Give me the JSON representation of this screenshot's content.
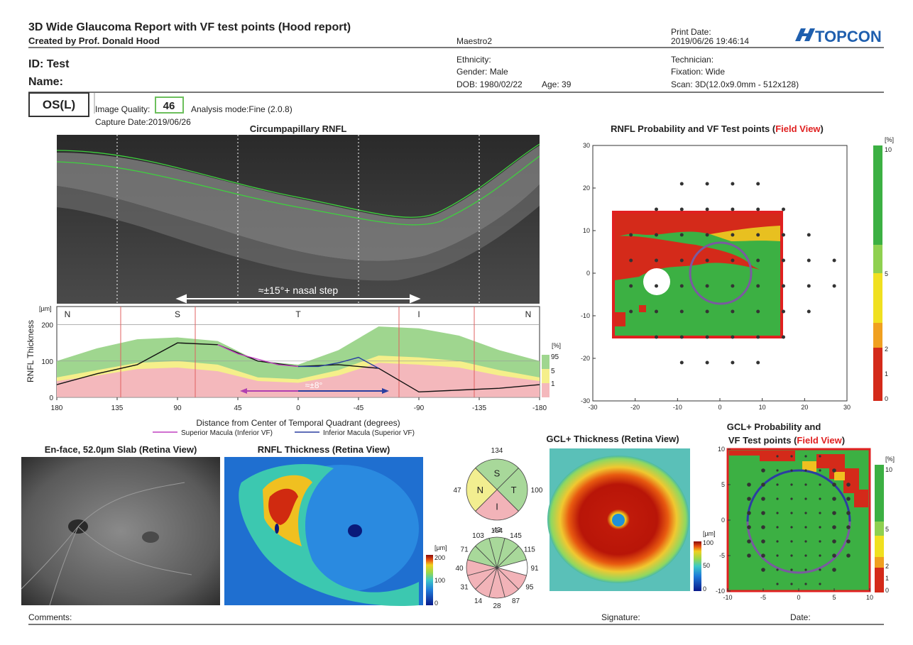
{
  "header": {
    "title": "3D Wide Glaucoma Report with VF test points (Hood report)",
    "subtitle": "Created by Prof. Donald Hood",
    "device": "Maestro2",
    "print_date_label": "Print Date:",
    "print_date": "2019/06/26 19:46:14",
    "logo": "TOPCON"
  },
  "patient": {
    "id": "ID: Test",
    "name": "Name:",
    "ethnicity": "Ethnicity:",
    "gender": "Gender: Male",
    "dob": "DOB: 1980/02/22",
    "age": "Age: 39",
    "technician": "Technician:",
    "fixation": "Fixation: Wide",
    "scan": "Scan: 3D(12.0x9.0mm - 512x128)",
    "eye": "OS(L)",
    "image_quality_label": "Image Quality:",
    "image_quality": 46,
    "analysis_mode": "Analysis mode:Fine (2.0.8)",
    "capture_date": "Capture Date:2019/06/26"
  },
  "cprnfl": {
    "title": "Circumpapillary RNFL",
    "annotation": "≈±15°+ nasal step",
    "annotation_small": "≈±8°",
    "sectors": [
      "N",
      "S",
      "T",
      "I",
      "N"
    ],
    "y_unit": "[µm]",
    "y_label": "RNFL Thickness",
    "x_label": "Distance from Center of Temporal Quadrant (degrees)",
    "xlim": [
      180,
      -180
    ],
    "ylim": [
      0,
      250
    ],
    "xticks": [
      180,
      135,
      90,
      45,
      0,
      -45,
      -90,
      -135,
      -180
    ],
    "yticks": [
      0,
      100,
      200
    ],
    "legend_unit": "[%]",
    "legend_labels": [
      95,
      5,
      1
    ],
    "x": [
      180,
      150,
      120,
      90,
      60,
      30,
      0,
      -30,
      -60,
      -90,
      -120,
      -150,
      -180
    ],
    "p95": [
      100,
      135,
      160,
      165,
      155,
      100,
      90,
      130,
      195,
      190,
      170,
      130,
      100
    ],
    "p5": [
      55,
      75,
      95,
      100,
      90,
      55,
      50,
      75,
      115,
      110,
      100,
      75,
      55
    ],
    "p1": [
      45,
      60,
      78,
      82,
      72,
      45,
      40,
      60,
      95,
      90,
      82,
      60,
      45
    ],
    "measured": [
      35,
      65,
      90,
      150,
      145,
      100,
      85,
      90,
      80,
      15,
      20,
      25,
      35
    ],
    "superior_macula": {
      "name": "Superior Macula (Inferior VF)",
      "color": "#c040c0",
      "x": [
        60,
        45,
        30,
        15,
        0
      ],
      "values": [
        145,
        120,
        105,
        90,
        85
      ]
    },
    "inferior_macula": {
      "name": "Inferior Macula (Superior VF)",
      "color": "#2a3fa0",
      "x": [
        0,
        -15,
        -30,
        -45,
        -60
      ],
      "values": [
        85,
        85,
        95,
        110,
        80
      ]
    }
  },
  "field_view": {
    "title_prefix": "RNFL Probability and VF Test points (",
    "title_highlight": "Field View",
    "title_suffix": ")",
    "xlim": [
      -30,
      30
    ],
    "ylim": [
      -30,
      30
    ],
    "xticks": [
      -30,
      -20,
      -10,
      0,
      10,
      20,
      30
    ],
    "yticks": [
      -30,
      -20,
      -10,
      0,
      10,
      20,
      30
    ],
    "scale_unit": "[%]",
    "scale_labels": [
      10,
      5,
      2,
      1,
      0
    ],
    "points": [
      {
        "y": 21,
        "x": [
          -9,
          -3,
          3,
          9
        ]
      },
      {
        "y": 15,
        "x": [
          -15,
          -9,
          -3,
          3,
          9,
          15
        ]
      },
      {
        "y": 9,
        "x": [
          -21,
          -15,
          -9,
          -3,
          3,
          9,
          15,
          21
        ]
      },
      {
        "y": 3,
        "x": [
          -21,
          -15,
          -9,
          -3,
          3,
          9,
          15,
          21,
          27
        ]
      },
      {
        "y": -3,
        "x": [
          -21,
          -15,
          -9,
          -3,
          3,
          9,
          15,
          21,
          27
        ]
      },
      {
        "y": -9,
        "x": [
          -21,
          -15,
          -9,
          -3,
          3,
          9,
          15,
          21
        ]
      },
      {
        "y": -15,
        "x": [
          -15,
          -9,
          -3,
          3,
          9,
          15
        ]
      },
      {
        "y": -21,
        "x": [
          -9,
          -3,
          3,
          9
        ]
      }
    ]
  },
  "enface": {
    "title": "En-face, 52.0µm Slab (Retina View)"
  },
  "rnfl_map": {
    "title": "RNFL Thickness (Retina View)",
    "scale_unit": "[µm]",
    "scale_labels": [
      200,
      100,
      0
    ]
  },
  "quadrants": {
    "labels": [
      "S",
      "T",
      "I",
      "N"
    ],
    "values": [
      134,
      100,
      43,
      47
    ],
    "colors": [
      "#a8d89a",
      "#a8d89a",
      "#f2b3b8",
      "#f2ee90"
    ]
  },
  "clock": {
    "values": [
      154,
      145,
      115,
      91,
      95,
      87,
      28,
      14,
      31,
      40,
      71,
      103
    ],
    "colors": [
      "#a8d89a",
      "#a8d89a",
      "#a8d89a",
      "#ffffff",
      "#f2b3b8",
      "#f2b3b8",
      "#f2b3b8",
      "#f2b3b8",
      "#f2b3b8",
      "#f2b3b8",
      "#a8d89a",
      "#a8d89a"
    ]
  },
  "gcl_map": {
    "title": "GCL+ Thickness (Retina View)",
    "scale_unit": "[µm]",
    "scale_labels": [
      100,
      50,
      0
    ]
  },
  "gcl_field": {
    "title_line1": "GCL+ Probability and",
    "title_prefix": "VF Test points (",
    "title_highlight": "Field View",
    "title_suffix": ")",
    "xlim": [
      -10,
      10
    ],
    "ylim": [
      -10,
      10
    ],
    "xticks": [
      -10,
      -5,
      0,
      5,
      10
    ],
    "yticks": [
      -10,
      -5,
      0,
      5,
      10
    ],
    "scale_unit": "[%]",
    "scale_labels": [
      10,
      5,
      2,
      1,
      0
    ],
    "points": [
      {
        "y": 9,
        "x": [
          -3,
          -1,
          1,
          3
        ]
      },
      {
        "y": 7,
        "x": [
          -5,
          -3,
          -1,
          1,
          3,
          5
        ]
      },
      {
        "y": 5,
        "x": [
          -7,
          -5,
          -3,
          -1,
          1,
          3,
          5,
          7
        ]
      },
      {
        "y": 3,
        "x": [
          -7,
          -5,
          -3,
          -1,
          1,
          3,
          5,
          7
        ]
      },
      {
        "y": 1,
        "x": [
          -7,
          -5,
          -3,
          -1,
          1,
          3,
          5,
          7
        ]
      },
      {
        "y": -1,
        "x": [
          -7,
          -5,
          -3,
          -1,
          1,
          3,
          5,
          7
        ]
      },
      {
        "y": -3,
        "x": [
          -7,
          -5,
          -3,
          -1,
          1,
          3,
          5,
          7
        ]
      },
      {
        "y": -5,
        "x": [
          -7,
          -5,
          -3,
          -1,
          1,
          3,
          5,
          7
        ]
      },
      {
        "y": -7,
        "x": [
          -5,
          -3,
          -1,
          1,
          3,
          5
        ]
      },
      {
        "y": -9,
        "x": [
          -3,
          -1,
          1,
          3
        ]
      }
    ]
  },
  "footer": {
    "comments": "Comments:",
    "signature": "Signature:",
    "date": "Date:"
  }
}
